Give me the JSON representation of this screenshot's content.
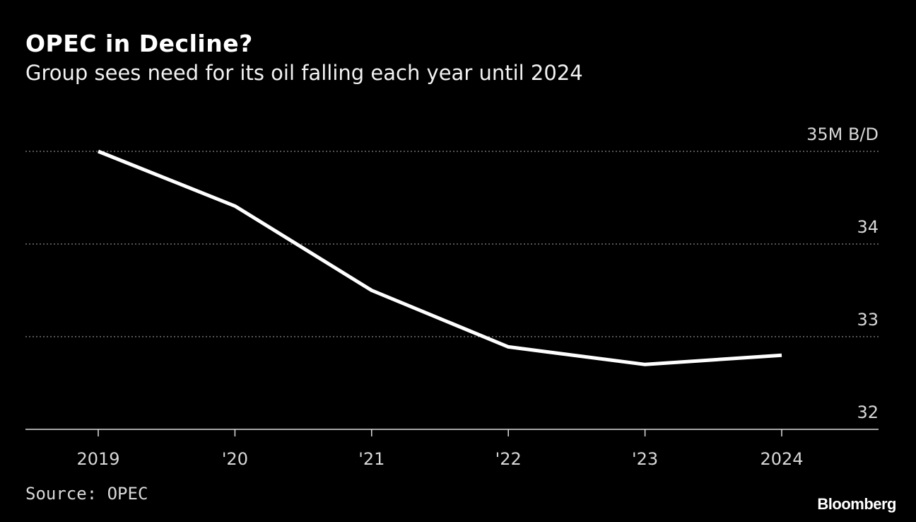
{
  "title": "OPEC in Decline?",
  "subtitle": "Group sees need for its oil falling each year until 2024",
  "source": "Source: OPEC",
  "brand": "Bloomberg",
  "colors": {
    "background": "#000000",
    "line": "#ffffff",
    "grid": "#888888"
  },
  "chart_data": {
    "type": "line",
    "categories": [
      "2019",
      "'20",
      "'21",
      "'22",
      "'23",
      "2024"
    ],
    "series": [
      {
        "values": [
          35.0,
          34.41,
          33.5,
          32.89,
          32.7,
          32.8
        ]
      }
    ],
    "yticks": [
      32,
      33,
      34,
      35
    ],
    "ytick_labels": [
      "32",
      "33",
      "34",
      "35M B/D"
    ],
    "ylim": [
      32,
      35
    ],
    "grid": true,
    "y_axis_position": "right"
  }
}
